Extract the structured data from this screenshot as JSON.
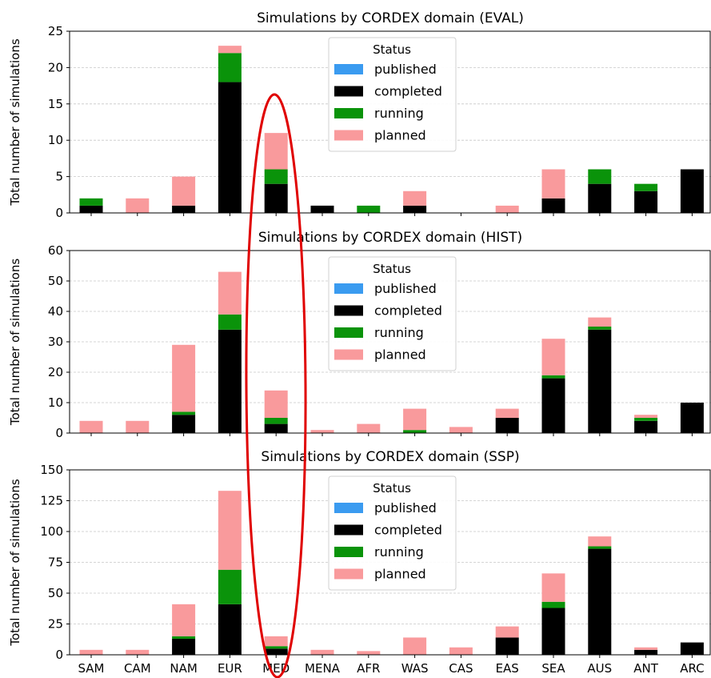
{
  "status_colors": {
    "published": "#3a9bf0",
    "completed": "#000000",
    "running": "#0a930a",
    "planned": "#f99a9c"
  },
  "annotation": {
    "shape": "ellipse",
    "color": "#e00000"
  },
  "chart_data": [
    {
      "type": "bar",
      "stacked": true,
      "title": "Simulations by CORDEX domain (EVAL)",
      "xlabel": "",
      "ylabel": "Total number of simulations",
      "categories": [
        "SAM",
        "CAM",
        "NAM",
        "EUR",
        "MED",
        "MENA",
        "AFR",
        "WAS",
        "CAS",
        "EAS",
        "SEA",
        "AUS",
        "ANT",
        "ARC"
      ],
      "ylim": [
        0,
        25
      ],
      "yticks": [
        0,
        5,
        10,
        15,
        20,
        25
      ],
      "grid": "y-dashed",
      "legend": {
        "title": "Status",
        "placement": "top-center"
      },
      "series": [
        {
          "name": "published",
          "color": "#3a9bf0",
          "values": [
            0,
            0,
            0,
            0,
            0,
            0,
            0,
            0,
            0,
            0,
            0,
            0,
            0,
            0
          ]
        },
        {
          "name": "completed",
          "color": "#000000",
          "values": [
            1,
            0,
            1,
            18,
            4,
            1,
            0,
            1,
            0,
            0,
            2,
            4,
            3,
            6
          ]
        },
        {
          "name": "running",
          "color": "#0a930a",
          "values": [
            1,
            0,
            0,
            4,
            2,
            0,
            1,
            0,
            0,
            0,
            0,
            2,
            1,
            0
          ]
        },
        {
          "name": "planned",
          "color": "#f99a9c",
          "values": [
            0,
            2,
            4,
            1,
            5,
            0,
            0,
            2,
            0,
            1,
            4,
            0,
            0,
            0
          ]
        }
      ]
    },
    {
      "type": "bar",
      "stacked": true,
      "title": "Simulations by CORDEX domain (HIST)",
      "xlabel": "",
      "ylabel": "Total number of simulations",
      "categories": [
        "SAM",
        "CAM",
        "NAM",
        "EUR",
        "MED",
        "MENA",
        "AFR",
        "WAS",
        "CAS",
        "EAS",
        "SEA",
        "AUS",
        "ANT",
        "ARC"
      ],
      "ylim": [
        0,
        60
      ],
      "yticks": [
        0,
        10,
        20,
        30,
        40,
        50,
        60
      ],
      "grid": "y-dashed",
      "legend": {
        "title": "Status",
        "placement": "top-center"
      },
      "series": [
        {
          "name": "published",
          "color": "#3a9bf0",
          "values": [
            0,
            0,
            0,
            0,
            0,
            0,
            0,
            0,
            0,
            0,
            0,
            0,
            0,
            0
          ]
        },
        {
          "name": "completed",
          "color": "#000000",
          "values": [
            0,
            0,
            6,
            34,
            3,
            0,
            0,
            0,
            0,
            5,
            18,
            34,
            4,
            10
          ]
        },
        {
          "name": "running",
          "color": "#0a930a",
          "values": [
            0,
            0,
            1,
            5,
            2,
            0,
            0,
            1,
            0,
            0,
            1,
            1,
            1,
            0
          ]
        },
        {
          "name": "planned",
          "color": "#f99a9c",
          "values": [
            4,
            4,
            22,
            14,
            9,
            1,
            3,
            7,
            2,
            3,
            12,
            3,
            1,
            0
          ]
        }
      ]
    },
    {
      "type": "bar",
      "stacked": true,
      "title": "Simulations by CORDEX domain (SSP)",
      "xlabel": "",
      "ylabel": "Total number of simulations",
      "categories": [
        "SAM",
        "CAM",
        "NAM",
        "EUR",
        "MED",
        "MENA",
        "AFR",
        "WAS",
        "CAS",
        "EAS",
        "SEA",
        "AUS",
        "ANT",
        "ARC"
      ],
      "ylim": [
        0,
        150
      ],
      "yticks": [
        0,
        25,
        50,
        75,
        100,
        125,
        150
      ],
      "grid": "y-dashed",
      "legend": {
        "title": "Status",
        "placement": "top-center"
      },
      "series": [
        {
          "name": "published",
          "color": "#3a9bf0",
          "values": [
            0,
            0,
            0,
            0,
            0,
            0,
            0,
            0,
            0,
            0,
            0,
            0,
            0,
            0
          ]
        },
        {
          "name": "completed",
          "color": "#000000",
          "values": [
            0,
            0,
            13,
            41,
            5,
            0,
            0,
            0,
            0,
            14,
            38,
            86,
            4,
            10
          ]
        },
        {
          "name": "running",
          "color": "#0a930a",
          "values": [
            0,
            0,
            2,
            28,
            2,
            0,
            0,
            0,
            0,
            0,
            5,
            2,
            0,
            0
          ]
        },
        {
          "name": "planned",
          "color": "#f99a9c",
          "values": [
            4,
            4,
            26,
            64,
            8,
            4,
            3,
            14,
            6,
            9,
            23,
            8,
            2,
            0
          ]
        }
      ]
    }
  ]
}
